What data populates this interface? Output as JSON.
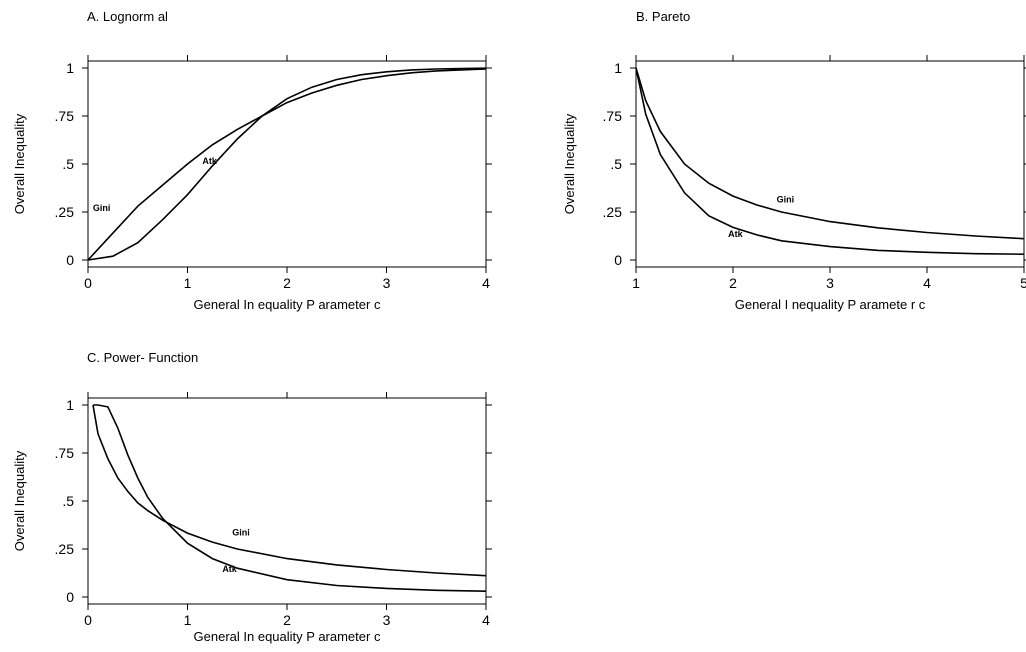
{
  "chart_data": [
    {
      "type": "line",
      "title": "A. Lognorm al",
      "xlabel": "General In equality P arameter c",
      "ylabel": "Overall Inequality",
      "xlim": [
        0,
        4
      ],
      "ylim": [
        0,
        1
      ],
      "xticks": [
        0,
        1,
        2,
        3,
        4
      ],
      "xtick_labels": [
        "0",
        "1",
        "2",
        "3",
        "4"
      ],
      "yticks": [
        0,
        0.25,
        0.5,
        0.75,
        1
      ],
      "ytick_labels": [
        "0",
        ".25",
        ".5",
        ".75",
        "1"
      ],
      "series": [
        {
          "name": "Gini",
          "x": [
            0,
            0.25,
            0.5,
            0.75,
            1,
            1.25,
            1.5,
            1.75,
            2,
            2.25,
            2.5,
            2.75,
            3,
            3.25,
            3.5,
            3.75,
            4
          ],
          "y": [
            0.0,
            0.14,
            0.28,
            0.39,
            0.5,
            0.6,
            0.68,
            0.75,
            0.82,
            0.87,
            0.91,
            0.94,
            0.96,
            0.975,
            0.985,
            0.99,
            0.995
          ]
        },
        {
          "name": "Atk",
          "x": [
            0,
            0.25,
            0.5,
            0.75,
            1,
            1.25,
            1.5,
            1.75,
            2,
            2.25,
            2.5,
            2.75,
            3,
            3.25,
            3.5,
            3.75,
            4
          ],
          "y": [
            0.0,
            0.02,
            0.09,
            0.21,
            0.34,
            0.49,
            0.63,
            0.75,
            0.84,
            0.9,
            0.94,
            0.965,
            0.98,
            0.99,
            0.995,
            0.997,
            0.999
          ]
        }
      ],
      "annotations": [
        {
          "text": "Gini",
          "x": 0.25,
          "y": 0.28
        },
        {
          "text": "Atk",
          "x": 1.15,
          "y": 0.5
        }
      ]
    },
    {
      "type": "line",
      "title": "B. Pareto",
      "xlabel": "General I nequality P aramete r c",
      "ylabel": "Overall Inequality",
      "xlim": [
        1,
        5
      ],
      "ylim": [
        0,
        1
      ],
      "xticks": [
        1,
        2,
        3,
        4,
        5
      ],
      "xtick_labels": [
        "1",
        "2",
        "3",
        "4",
        "5"
      ],
      "yticks": [
        0,
        0.25,
        0.5,
        0.75,
        1
      ],
      "ytick_labels": [
        "0",
        ".25",
        ".5",
        ".75",
        "1"
      ],
      "series": [
        {
          "name": "Gini",
          "x": [
            1,
            1.1,
            1.25,
            1.5,
            1.75,
            2,
            2.25,
            2.5,
            3,
            3.5,
            4,
            4.5,
            5
          ],
          "y": [
            1.0,
            0.83,
            0.67,
            0.5,
            0.4,
            0.333,
            0.286,
            0.25,
            0.2,
            0.167,
            0.143,
            0.125,
            0.111
          ]
        },
        {
          "name": "Atk",
          "x": [
            1,
            1.1,
            1.25,
            1.5,
            1.75,
            2,
            2.25,
            2.5,
            3,
            3.5,
            4,
            4.5,
            5
          ],
          "y": [
            1.0,
            0.76,
            0.55,
            0.35,
            0.23,
            0.17,
            0.13,
            0.1,
            0.07,
            0.05,
            0.04,
            0.033,
            0.03
          ]
        }
      ],
      "annotations": [
        {
          "text": "Gini",
          "x": 2.45,
          "y": 0.3
        },
        {
          "text": "Atk",
          "x": 1.95,
          "y": 0.12
        }
      ]
    },
    {
      "type": "line",
      "title": "C. Power- Function",
      "xlabel": "General In equality P arameter c",
      "ylabel": "Overall Inequality",
      "xlim": [
        0,
        4
      ],
      "ylim": [
        0,
        1
      ],
      "xticks": [
        0,
        1,
        2,
        3,
        4
      ],
      "xtick_labels": [
        "0",
        "1",
        "2",
        "3",
        "4"
      ],
      "yticks": [
        0,
        0.25,
        0.5,
        0.75,
        1
      ],
      "ytick_labels": [
        "0",
        ".25",
        ".5",
        ".75",
        "1"
      ],
      "series": [
        {
          "name": "Gini",
          "x": [
            0.05,
            0.1,
            0.2,
            0.3,
            0.4,
            0.5,
            0.6,
            0.75,
            1,
            1.25,
            1.5,
            2,
            2.5,
            3,
            3.5,
            4
          ],
          "y": [
            1.0,
            0.85,
            0.72,
            0.62,
            0.55,
            0.49,
            0.45,
            0.4,
            0.333,
            0.286,
            0.25,
            0.2,
            0.167,
            0.143,
            0.125,
            0.111
          ]
        },
        {
          "name": "Atk",
          "x": [
            0.05,
            0.1,
            0.2,
            0.3,
            0.4,
            0.5,
            0.6,
            0.75,
            1,
            1.25,
            1.5,
            2,
            2.5,
            3,
            3.5,
            4
          ],
          "y": [
            1.0,
            1.0,
            0.99,
            0.88,
            0.74,
            0.62,
            0.52,
            0.41,
            0.28,
            0.2,
            0.15,
            0.09,
            0.06,
            0.045,
            0.035,
            0.03
          ]
        }
      ],
      "annotations": [
        {
          "text": "Gini",
          "x": 1.45,
          "y": 0.32
        },
        {
          "text": "Atk",
          "x": 1.35,
          "y": 0.13
        }
      ]
    }
  ]
}
